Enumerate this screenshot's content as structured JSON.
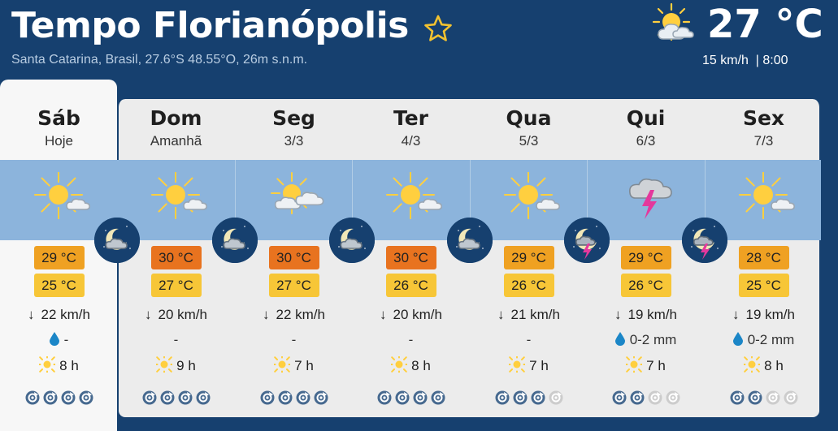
{
  "header": {
    "title": "Tempo Florianópolis",
    "subtitle": "Santa Catarina, Brasil, 27.6°S 48.55°O, 26m s.n.m.",
    "favorite_icon": "star-outline-icon"
  },
  "current": {
    "temperature": "27 °C",
    "meta": "15 km/h  | 8:00",
    "icon": "partly-cloudy-icon"
  },
  "colors": {
    "header_bg": "#16406f",
    "sky_band": "#8cb4dc",
    "temp_max_hot": "#e8731f",
    "temp_max": "#efa122",
    "temp_min": "#f7c637",
    "rain_drop": "#1b86c7",
    "sun": "#ffcf3f",
    "storm": "#e4389c"
  },
  "days": [
    {
      "name": "Sáb",
      "sub": "Hoje",
      "icon": "sun-cloud-icon",
      "max": "29 °C",
      "min": "25 °C",
      "max_color": "#efa122",
      "wind": "22 km/h",
      "rain": "-",
      "rain_icon": true,
      "sun": "8 h",
      "rating": 4
    },
    {
      "name": "Dom",
      "sub": "Amanhã",
      "icon": "sun-cloud-icon",
      "max": "30 °C",
      "min": "27 °C",
      "max_color": "#e8731f",
      "wind": "20 km/h",
      "rain": "-",
      "rain_icon": false,
      "sun": "9 h",
      "rating": 4
    },
    {
      "name": "Seg",
      "sub": "3/3",
      "icon": "cloudy-sun-icon",
      "max": "30 °C",
      "min": "27 °C",
      "max_color": "#e8731f",
      "wind": "22 km/h",
      "rain": "-",
      "rain_icon": false,
      "sun": "7 h",
      "rating": 4
    },
    {
      "name": "Ter",
      "sub": "4/3",
      "icon": "sun-cloud-icon",
      "max": "30 °C",
      "min": "26 °C",
      "max_color": "#e8731f",
      "wind": "20 km/h",
      "rain": "-",
      "rain_icon": false,
      "sun": "8 h",
      "rating": 4
    },
    {
      "name": "Qua",
      "sub": "5/3",
      "icon": "sun-cloud-icon",
      "max": "29 °C",
      "min": "26 °C",
      "max_color": "#efa122",
      "wind": "21 km/h",
      "rain": "-",
      "rain_icon": false,
      "sun": "7 h",
      "rating": 3
    },
    {
      "name": "Qui",
      "sub": "6/3",
      "icon": "thunderstorm-icon",
      "max": "29 °C",
      "min": "26 °C",
      "max_color": "#efa122",
      "wind": "19 km/h",
      "rain": "0-2 mm",
      "rain_icon": true,
      "sun": "7 h",
      "rating": 2
    },
    {
      "name": "Sex",
      "sub": "7/3",
      "icon": "sun-cloud-icon",
      "max": "28 °C",
      "min": "25 °C",
      "max_color": "#efa122",
      "wind": "19 km/h",
      "rain": "0-2 mm",
      "rain_icon": true,
      "sun": "8 h",
      "rating": 2
    }
  ],
  "nights": [
    {
      "icon": "night-cloud-icon"
    },
    {
      "icon": "night-cloud-icon"
    },
    {
      "icon": "night-cloud-icon"
    },
    {
      "icon": "night-cloud-icon"
    },
    {
      "icon": "night-storm-icon"
    },
    {
      "icon": "night-storm-icon"
    }
  ]
}
